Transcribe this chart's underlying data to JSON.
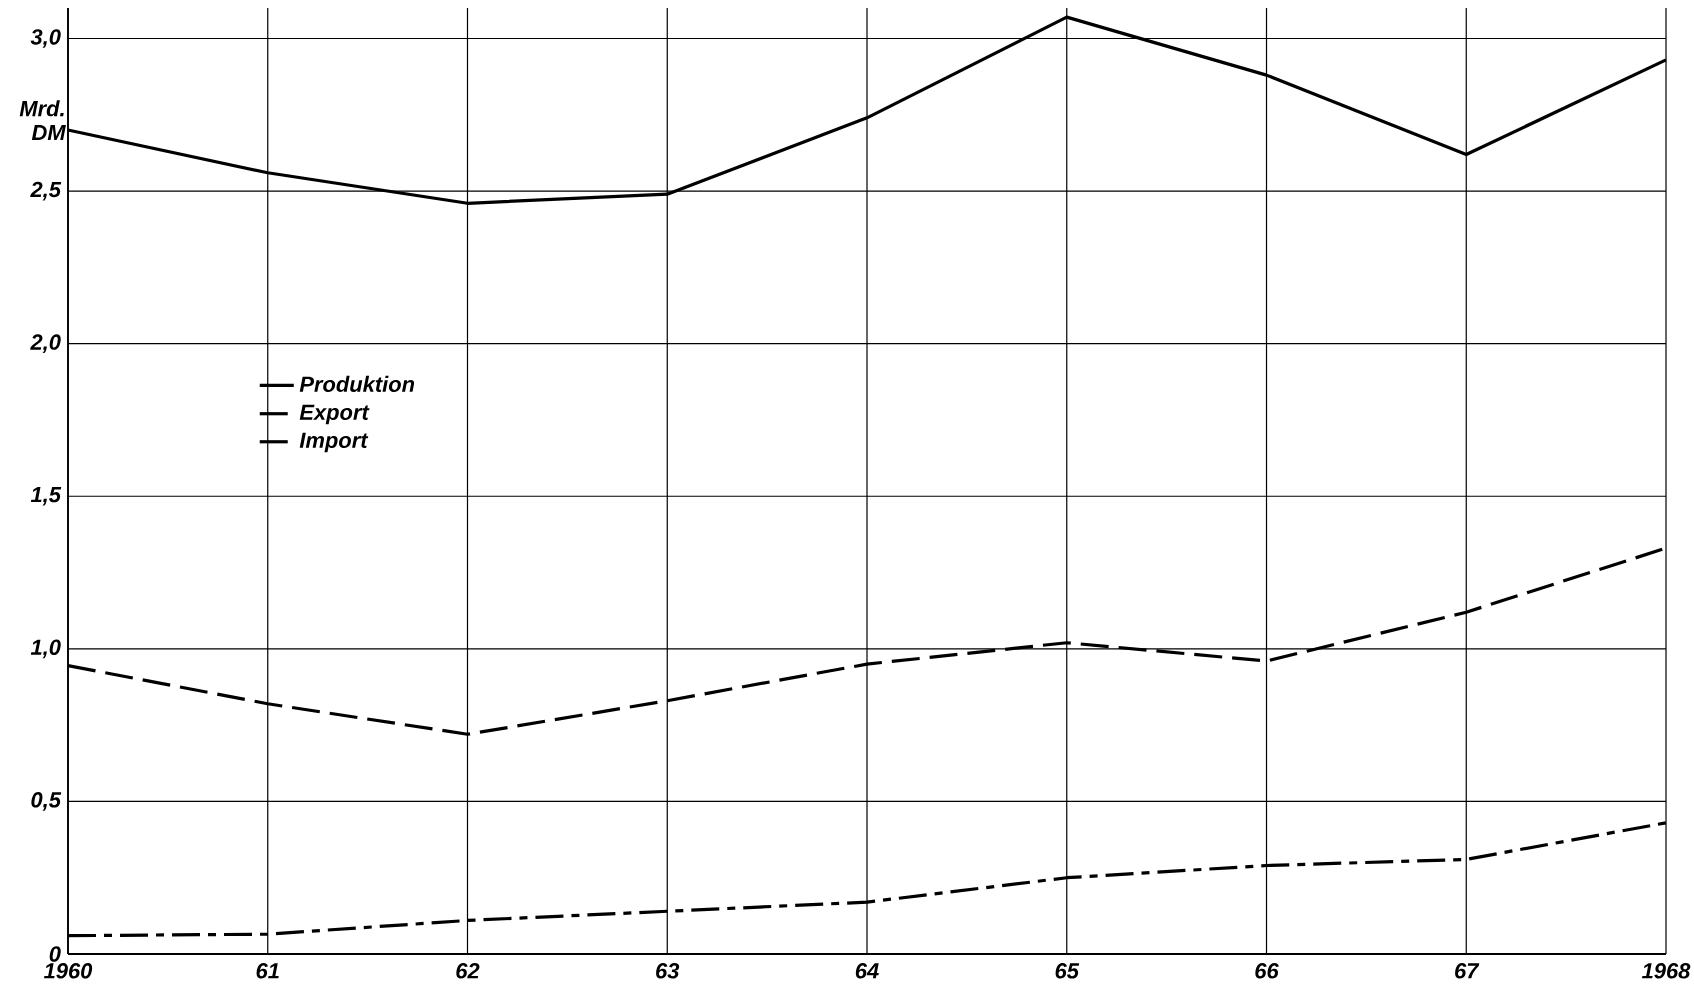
{
  "chart_data": {
    "type": "line",
    "ylabel": "Mrd. DM",
    "x": [
      1960,
      1961,
      1962,
      1963,
      1964,
      1965,
      1966,
      1967,
      1968
    ],
    "xlim": [
      1960,
      1968
    ],
    "xticks": [
      {
        "value": 1960,
        "label": "1960"
      },
      {
        "value": 1961,
        "label": "61"
      },
      {
        "value": 1962,
        "label": "62"
      },
      {
        "value": 1963,
        "label": "63"
      },
      {
        "value": 1964,
        "label": "64"
      },
      {
        "value": 1965,
        "label": "65"
      },
      {
        "value": 1966,
        "label": "66"
      },
      {
        "value": 1967,
        "label": "67"
      },
      {
        "value": 1968,
        "label": "1968"
      }
    ],
    "ylim": [
      0,
      3.1
    ],
    "yticks": [
      0,
      {
        "value": 0.5,
        "label": "0,5"
      },
      {
        "value": 1,
        "label": "1,0"
      },
      {
        "value": 1.5,
        "label": "1,5"
      },
      {
        "value": 2,
        "label": "2,0"
      },
      {
        "value": 2.5,
        "label": "2,5"
      },
      {
        "value": 3,
        "label": "3,0"
      }
    ],
    "grid": true,
    "legend": "center left",
    "marker": "none",
    "series": [
      {
        "name": "Produktion",
        "color": "#000000",
        "line_style": "solid",
        "values": [
          2.7,
          2.56,
          2.46,
          2.49,
          2.74,
          3.07,
          2.88,
          2.62,
          2.93
        ]
      },
      {
        "name": "Export",
        "color": "#000000",
        "line_style": "dashed",
        "values": [
          0.945,
          0.82,
          0.72,
          0.83,
          0.95,
          1.02,
          0.96,
          1.12,
          1.33
        ]
      },
      {
        "name": "Import",
        "color": "#000000",
        "line_style": "dashdot",
        "values": [
          0.06,
          0.065,
          0.11,
          0.14,
          0.17,
          0.25,
          0.29,
          0.31,
          0.43
        ]
      }
    ]
  }
}
